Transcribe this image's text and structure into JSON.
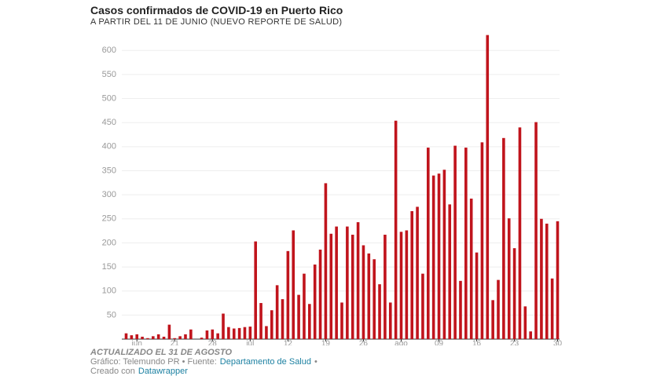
{
  "chart_data": {
    "type": "bar",
    "title": "Casos confirmados de COVID-19 en Puerto Rico",
    "subtitle": "A PARTIR DEL 11 DE JUNIO (NUEVO REPORTE DE SALUD)",
    "categories": [
      null,
      null,
      "jun",
      null,
      null,
      null,
      null,
      null,
      null,
      "21",
      null,
      null,
      null,
      null,
      null,
      null,
      "28",
      null,
      null,
      null,
      null,
      null,
      null,
      "jul",
      null,
      null,
      null,
      null,
      null,
      null,
      "12",
      null,
      null,
      null,
      null,
      null,
      null,
      "19",
      null,
      null,
      null,
      null,
      null,
      null,
      "26",
      null,
      null,
      null,
      null,
      null,
      null,
      "ago",
      null,
      null,
      null,
      null,
      null,
      null,
      "09",
      null,
      null,
      null,
      null,
      null,
      null,
      "16",
      null,
      null,
      null,
      null,
      null,
      null,
      "23",
      null,
      null,
      null,
      null,
      null,
      null,
      null,
      "30"
    ],
    "values": [
      12,
      8,
      10,
      5,
      2,
      6,
      10,
      5,
      30,
      2,
      6,
      10,
      20,
      0,
      3,
      18,
      20,
      12,
      53,
      25,
      22,
      23,
      25,
      26,
      203,
      75,
      27,
      60,
      112,
      83,
      183,
      226,
      92,
      136,
      73,
      155,
      186,
      324,
      219,
      234,
      76,
      234,
      217,
      243,
      195,
      178,
      166,
      114,
      217,
      76,
      454,
      223,
      226,
      266,
      275,
      136,
      398,
      340,
      344,
      352,
      280,
      402,
      121,
      398,
      292,
      180,
      409,
      632,
      81,
      123,
      418,
      251,
      189,
      440,
      68,
      16,
      451,
      250,
      240,
      126,
      245
    ],
    "color": "#c0141c",
    "ylim": [
      0,
      620
    ],
    "yticks": [
      50,
      100,
      150,
      200,
      250,
      300,
      350,
      400,
      450,
      500,
      550,
      600
    ],
    "grid": true,
    "note": "ACTUALIZADO EL 31 DE AGOSTO",
    "source_prefix": "Gráfico: Telemundo PR • Fuente:",
    "source_link": "Departamento de Salud",
    "source_suffix": "•",
    "made_with": "Creado con",
    "made_with_link": "Datawrapper"
  }
}
